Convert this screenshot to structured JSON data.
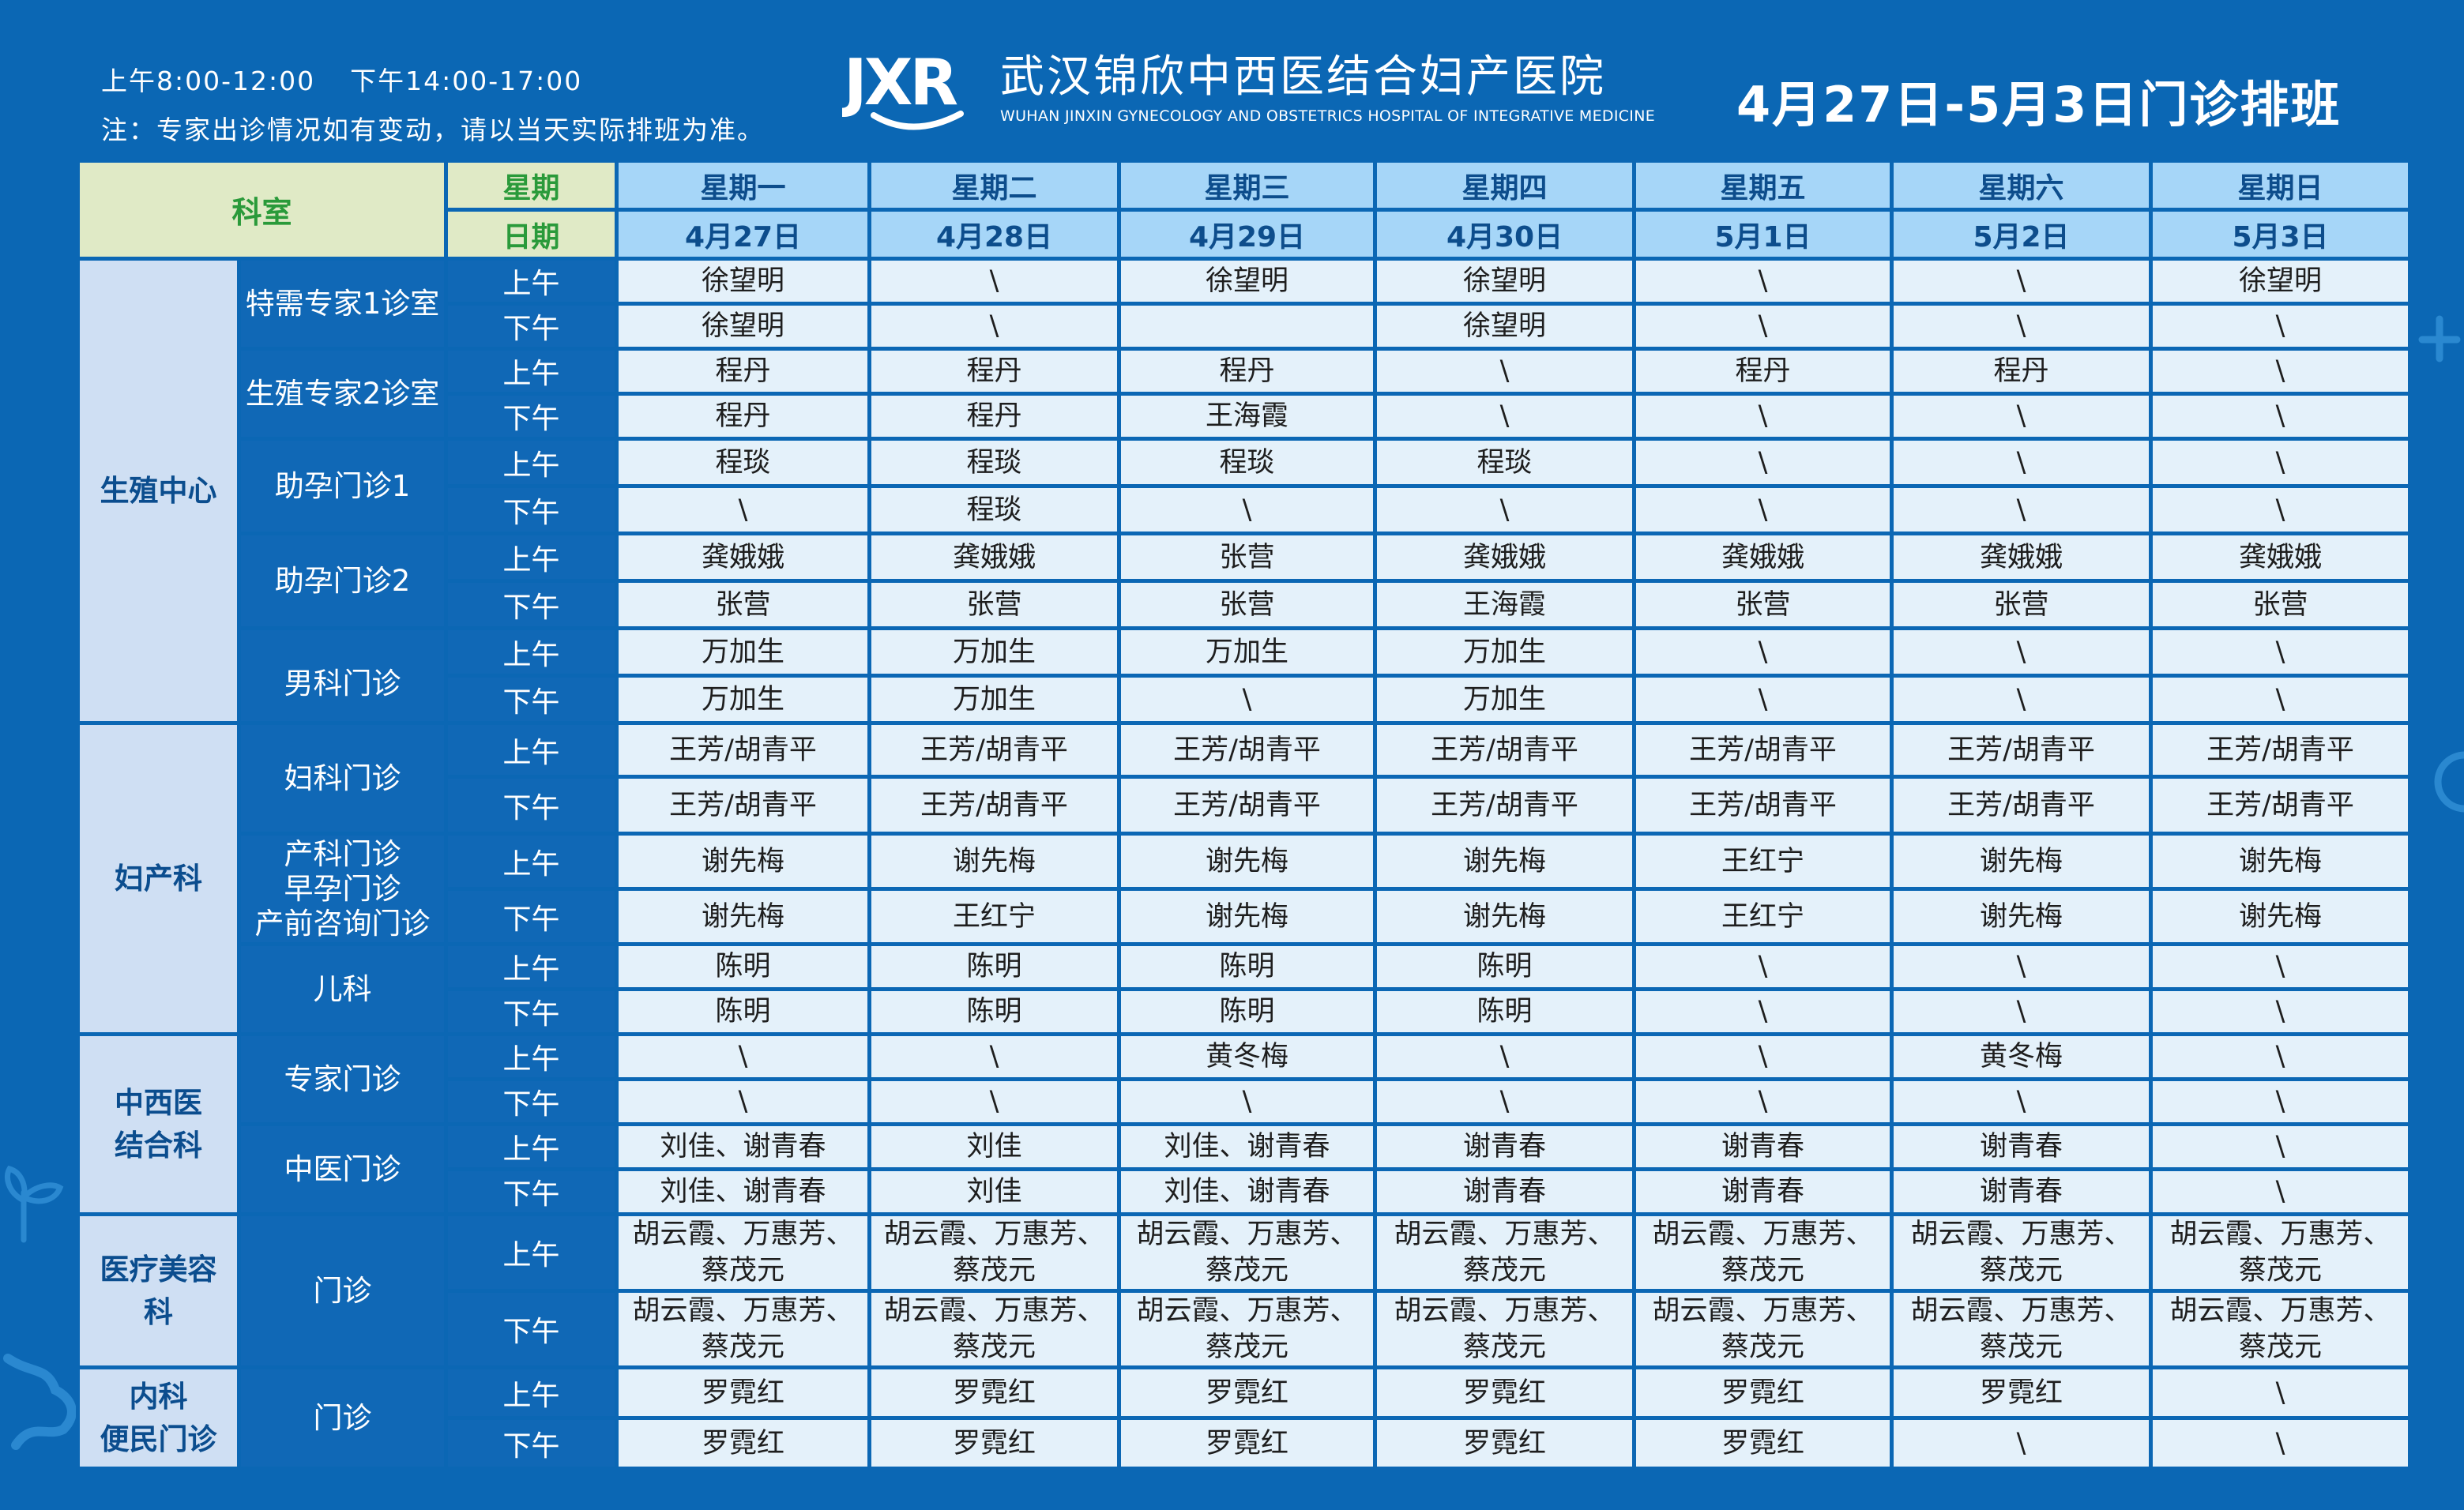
{
  "header": {
    "hours_morning": "上午8:00-12:00",
    "hours_afternoon": "下午14:00-17:00",
    "notice": "注：专家出诊情况如有变动，请以当天实际排班为准。",
    "logo_mark": "JXR",
    "hospital_name": "武汉锦欣中西医结合妇产医院",
    "hospital_name_en": "WUHAN JINXIN GYNECOLOGY AND OBSTETRICS HOSPITAL OF INTEGRATIVE MEDICINE",
    "week_title": "4月27日-5月3日门诊排班"
  },
  "table": {
    "dept_header": "科室",
    "weekday_label": "星期",
    "date_label": "日期",
    "am": "上午",
    "pm": "下午",
    "days": [
      {
        "weekday": "星期一",
        "date": "4月27日"
      },
      {
        "weekday": "星期二",
        "date": "4月28日"
      },
      {
        "weekday": "星期三",
        "date": "4月29日"
      },
      {
        "weekday": "星期四",
        "date": "4月30日"
      },
      {
        "weekday": "星期五",
        "date": "5月1日"
      },
      {
        "weekday": "星期六",
        "date": "5月2日"
      },
      {
        "weekday": "星期日",
        "date": "5月3日"
      }
    ],
    "departments": [
      {
        "name": "生殖中心",
        "rooms": [
          {
            "name": "特需专家1诊室",
            "am": [
              "徐望明",
              "\\",
              "徐望明",
              "徐望明",
              "\\",
              "\\",
              "徐望明"
            ],
            "pm": [
              "徐望明",
              "\\",
              "",
              "徐望明",
              "\\",
              "\\",
              "\\"
            ]
          },
          {
            "name": "生殖专家2诊室",
            "am": [
              "程丹",
              "程丹",
              "程丹",
              "\\",
              "程丹",
              "程丹",
              "\\"
            ],
            "pm": [
              "程丹",
              "程丹",
              "王海霞",
              "\\",
              "\\",
              "\\",
              "\\"
            ]
          },
          {
            "name": "助孕门诊1",
            "am": [
              "程琰",
              "程琰",
              "程琰",
              "程琰",
              "\\",
              "\\",
              "\\"
            ],
            "pm": [
              "\\",
              "程琰",
              "\\",
              "\\",
              "\\",
              "\\",
              "\\"
            ]
          },
          {
            "name": "助孕门诊2",
            "am": [
              "龚娥娥",
              "龚娥娥",
              "张营",
              "龚娥娥",
              "龚娥娥",
              "龚娥娥",
              "龚娥娥"
            ],
            "pm": [
              "张营",
              "张营",
              "张营",
              "王海霞",
              "张营",
              "张营",
              "张营"
            ]
          },
          {
            "name": "男科门诊",
            "am": [
              "万加生",
              "万加生",
              "万加生",
              "万加生",
              "\\",
              "\\",
              "\\"
            ],
            "pm": [
              "万加生",
              "万加生",
              "\\",
              "万加生",
              "\\",
              "\\",
              "\\"
            ]
          }
        ]
      },
      {
        "name": "妇产科",
        "rooms": [
          {
            "name": "妇科门诊",
            "am": [
              "王芳/胡青平",
              "王芳/胡青平",
              "王芳/胡青平",
              "王芳/胡青平",
              "王芳/胡青平",
              "王芳/胡青平",
              "王芳/胡青平"
            ],
            "pm": [
              "王芳/胡青平",
              "王芳/胡青平",
              "王芳/胡青平",
              "王芳/胡青平",
              "王芳/胡青平",
              "王芳/胡青平",
              "王芳/胡青平"
            ]
          },
          {
            "name_lines": [
              "产科门诊",
              "早孕门诊",
              "产前咨询门诊"
            ],
            "am": [
              "谢先梅",
              "谢先梅",
              "谢先梅",
              "谢先梅",
              "王红宁",
              "谢先梅",
              "谢先梅"
            ],
            "pm": [
              "谢先梅",
              "王红宁",
              "谢先梅",
              "谢先梅",
              "王红宁",
              "谢先梅",
              "谢先梅"
            ]
          },
          {
            "name": "儿科",
            "am": [
              "陈明",
              "陈明",
              "陈明",
              "陈明",
              "\\",
              "\\",
              "\\"
            ],
            "pm": [
              "陈明",
              "陈明",
              "陈明",
              "陈明",
              "\\",
              "\\",
              "\\"
            ]
          }
        ]
      },
      {
        "name_lines": [
          "中西医",
          "结合科"
        ],
        "rooms": [
          {
            "name": "专家门诊",
            "am": [
              "\\",
              "\\",
              "黄冬梅",
              "\\",
              "\\",
              "黄冬梅",
              "\\"
            ],
            "pm": [
              "\\",
              "\\",
              "\\",
              "\\",
              "\\",
              "\\",
              "\\"
            ]
          },
          {
            "name": "中医门诊",
            "am": [
              "刘佳、谢青春",
              "刘佳",
              "刘佳、谢青春",
              "谢青春",
              "谢青春",
              "谢青春",
              "\\"
            ],
            "pm": [
              "刘佳、谢青春",
              "刘佳",
              "刘佳、谢青春",
              "谢青春",
              "谢青春",
              "谢青春",
              "\\"
            ]
          }
        ]
      },
      {
        "name_lines": [
          "医疗美容",
          "科"
        ],
        "rooms": [
          {
            "name": "门诊",
            "am": [
              "胡云霞、万惠芳、|蔡茂元",
              "胡云霞、万惠芳、|蔡茂元",
              "胡云霞、万惠芳、|蔡茂元",
              "胡云霞、万惠芳、|蔡茂元",
              "胡云霞、万惠芳、|蔡茂元",
              "胡云霞、万惠芳、|蔡茂元",
              "胡云霞、万惠芳、|蔡茂元"
            ],
            "pm": [
              "胡云霞、万惠芳、|蔡茂元",
              "胡云霞、万惠芳、|蔡茂元",
              "胡云霞、万惠芳、|蔡茂元",
              "胡云霞、万惠芳、|蔡茂元",
              "胡云霞、万惠芳、|蔡茂元",
              "胡云霞、万惠芳、|蔡茂元",
              "胡云霞、万惠芳、|蔡茂元"
            ]
          }
        ]
      },
      {
        "name_lines": [
          "内科",
          "便民门诊"
        ],
        "rooms": [
          {
            "name": "门诊",
            "am": [
              "罗霓红",
              "罗霓红",
              "罗霓红",
              "罗霓红",
              "罗霓红",
              "罗霓红",
              "\\"
            ],
            "pm": [
              "罗霓红",
              "罗霓红",
              "罗霓红",
              "罗霓红",
              "罗霓红",
              "\\",
              "\\"
            ]
          }
        ]
      }
    ]
  },
  "colors": {
    "background": "#0b67b4",
    "cell_bg": "#e4f1fa",
    "day_header_bg": "#a6d6f8",
    "dept_bg": "#cfdff3",
    "room_bg": "#1068b6",
    "corner_bg": "#e0eac6",
    "corner_text": "#2a9a3a"
  }
}
